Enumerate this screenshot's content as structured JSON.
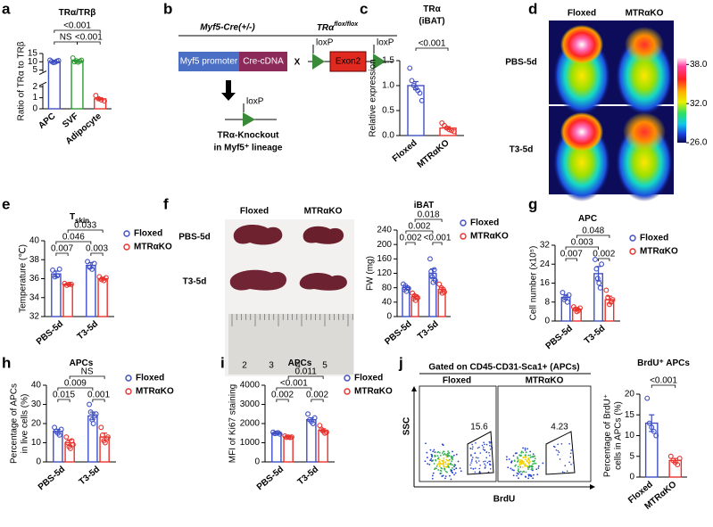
{
  "panel_labels": [
    "a",
    "b",
    "c",
    "d",
    "e",
    "f",
    "g",
    "h",
    "i",
    "j"
  ],
  "chart_data": [
    {
      "type": "bar",
      "title": "TRα/TRβ",
      "y_label": [
        "Ratio of TRα to TRβ"
      ],
      "categories": [
        "APC",
        "SVF",
        "Adipocyte"
      ],
      "values": [
        10,
        10.5,
        0.9
      ],
      "errors": [
        0.3,
        0.4,
        0.1
      ],
      "points": [
        [
          11.0,
          10.2,
          9.6,
          9.8,
          10.4,
          10.7
        ],
        [
          12.3,
          10.0,
          10.6,
          9.8,
          10.4,
          10.9
        ],
        [
          1.2,
          0.9,
          0.8,
          0.7
        ]
      ],
      "colors": [
        "#3f4fc4",
        "#2e9a35",
        "#e8322d"
      ],
      "ylim_lower": [
        0,
        2
      ],
      "ylim_upper": [
        5,
        15
      ],
      "yticks": [
        0,
        1,
        2,
        5,
        10,
        15
      ],
      "comparisons": [
        "<0.001",
        "NS",
        "<0.001"
      ]
    },
    {
      "type": "bar",
      "title": "TRα",
      "subtitle": "(iBAT)",
      "y_label": [
        "Relative expression"
      ],
      "categories": [
        "Floxed",
        "MTRαKO"
      ],
      "values": [
        1.0,
        0.15
      ],
      "errors": [
        0.08,
        0.03
      ],
      "points": [
        [
          1.35,
          1.1,
          1.0,
          0.95,
          0.9,
          0.85,
          0.7
        ],
        [
          0.25,
          0.2,
          0.15,
          0.12,
          0.1,
          0.08
        ]
      ],
      "colors": [
        "#3f4fc4",
        "#e8322d"
      ],
      "ylim": [
        0,
        1.5
      ],
      "yticks": [
        {
          "value": 0,
          "label": "0.0"
        },
        {
          "value": 0.5,
          "label": "0.5"
        },
        {
          "value": 1,
          "label": "1.0"
        },
        {
          "value": 1.5,
          "label": "1.5"
        }
      ],
      "comparisons": [
        "<0.001"
      ]
    },
    {
      "type": "bar",
      "title": "T",
      "title_subscript": "skin",
      "y_label": [
        "Temperature (℃)"
      ],
      "categories": [
        "PBS-5d",
        "T3-5d"
      ],
      "series": [
        {
          "name": "Floxed",
          "color": "#3f4fc4",
          "values": [
            36.5,
            37.4
          ],
          "errors": [
            0.3,
            0.3
          ],
          "points": [
            [
              36.9,
              36.2,
              36.3,
              37.0
            ],
            [
              37.8,
              37.2,
              37.0,
              37.6
            ]
          ]
        },
        {
          "name": "MTRαKO",
          "color": "#e8322d",
          "values": [
            35.4,
            36.0
          ],
          "errors": [
            0.1,
            0.15
          ],
          "points": [
            [
              35.5,
              35.3,
              35.4,
              35.4
            ],
            [
              36.2,
              35.9,
              35.8,
              36.1
            ]
          ]
        }
      ],
      "ylim": [
        32,
        40
      ],
      "yticks": [
        32,
        34,
        36,
        38,
        40
      ],
      "comparisons": [
        "0.033",
        "0.046",
        "0.007",
        "0.003"
      ]
    },
    {
      "type": "bar",
      "title": "iBAT",
      "y_label": [
        "FW (mg)"
      ],
      "categories": [
        "PBS-5d",
        "T3-5d"
      ],
      "series": [
        {
          "name": "Floxed",
          "color": "#3f4fc4",
          "values": [
            80,
            120
          ],
          "errors": [
            5,
            12
          ],
          "points": [
            [
              90,
              75,
              85,
              70,
              80,
              78
            ],
            [
              160,
              125,
              110,
              95,
              130,
              100
            ]
          ]
        },
        {
          "name": "MTRαKO",
          "color": "#e8322d",
          "values": [
            55,
            75
          ],
          "errors": [
            5,
            6
          ],
          "points": [
            [
              65,
              50,
              58,
              45,
              55,
              52
            ],
            [
              90,
              70,
              80,
              65,
              75,
              68
            ]
          ]
        }
      ],
      "ylim": [
        0,
        240
      ],
      "yticks": [
        0,
        40,
        80,
        120,
        160,
        200,
        240
      ],
      "comparisons": [
        "0.018",
        "0.002",
        "0.002",
        "<0.001"
      ]
    },
    {
      "type": "bar",
      "title": "APC",
      "y_label": [
        "Cell number (x10⁵)"
      ],
      "categories": [
        "PBS-5d",
        "T3-5d"
      ],
      "series": [
        {
          "name": "Floxed",
          "color": "#3f4fc4",
          "values": [
            10,
            20
          ],
          "errors": [
            1,
            3
          ],
          "points": [
            [
              12,
              9,
              10,
              8,
              11
            ],
            [
              26,
              22,
              18,
              16,
              14,
              24
            ]
          ]
        },
        {
          "name": "MTRαKO",
          "color": "#e8322d",
          "values": [
            5,
            9
          ],
          "errors": [
            0.7,
            1.5
          ],
          "points": [
            [
              6,
              5,
              4,
              4.5,
              5.5
            ],
            [
              13,
              10,
              7,
              8,
              9
            ]
          ]
        }
      ],
      "ylim": [
        0,
        32
      ],
      "yticks": [
        0,
        8,
        16,
        24,
        32
      ],
      "comparisons": [
        "0.048",
        "0.003",
        "0.007",
        "0.002"
      ]
    },
    {
      "type": "bar",
      "title": "APCs",
      "y_label": [
        "Percentage of APCs",
        "in live cells (%)"
      ],
      "categories": [
        "PBS-5d",
        "T3-5d"
      ],
      "series": [
        {
          "name": "Floxed",
          "color": "#3f4fc4",
          "values": [
            16,
            24
          ],
          "errors": [
            1,
            2
          ],
          "points": [
            [
              18,
              16,
              15,
              14,
              17
            ],
            [
              30,
              26,
              22,
              20,
              24,
              25
            ]
          ]
        },
        {
          "name": "MTRαKO",
          "color": "#e8322d",
          "values": [
            10,
            13
          ],
          "errors": [
            1.5,
            2
          ],
          "points": [
            [
              13,
              10,
              8,
              7,
              11,
              9
            ],
            [
              18,
              14,
              11,
              10,
              12,
              13
            ]
          ]
        }
      ],
      "ylim": [
        0,
        40
      ],
      "yticks": [
        0,
        10,
        20,
        30,
        40
      ],
      "comparisons": [
        "NS",
        "0.009",
        "0.015",
        "0.001"
      ]
    },
    {
      "type": "bar",
      "title": "APCs",
      "y_label": [
        "MFI of Ki67 staining"
      ],
      "categories": [
        "PBS-5d",
        "T3-5d"
      ],
      "series": [
        {
          "name": "Floxed",
          "color": "#3f4fc4",
          "values": [
            1500,
            2200
          ],
          "errors": [
            30,
            100
          ],
          "points": [
            [
              1550,
              1480,
              1500,
              1520,
              1450
            ],
            [
              2500,
              2200,
              2100,
              2000,
              2300
            ]
          ]
        },
        {
          "name": "MTRαKO",
          "color": "#e8322d",
          "values": [
            1300,
            1650
          ],
          "errors": [
            30,
            80
          ],
          "points": [
            [
              1350,
              1280,
              1300,
              1270,
              1300
            ],
            [
              1900,
              1700,
              1600,
              1500,
              1550
            ]
          ]
        }
      ],
      "ylim": [
        0,
        4000
      ],
      "yticks": [
        0,
        1000,
        2000,
        3000,
        4000
      ],
      "comparisons": [
        "0.011",
        "<0.001",
        "0.002",
        "0.002"
      ]
    },
    {
      "type": "bar",
      "title": "BrdU⁺ APCs",
      "y_label": [
        "Percentage of BrdU⁺",
        "cells in APCs (%)"
      ],
      "categories": [
        "Floxed",
        "MTRαKO"
      ],
      "values": [
        13,
        4
      ],
      "errors": [
        2,
        0.5
      ],
      "points": [
        [
          19,
          13,
          12,
          11,
          10
        ],
        [
          5,
          4,
          3.5,
          3,
          4.5
        ]
      ],
      "colors": [
        "#3f4fc4",
        "#e8322d"
      ],
      "ylim": [
        0,
        20
      ],
      "yticks": [
        0,
        5,
        10,
        15,
        20
      ],
      "comparisons": [
        "<0.001"
      ]
    }
  ],
  "schematic": {
    "parent1": "Myf5-Cre(+/-)",
    "parent2": "TRα",
    "parent2_superscript": "flox/flox",
    "promoter": "Myf5 promoter",
    "cdna": "Cre-cDNA",
    "cross": "X",
    "loxp": [
      "loxP",
      "loxP",
      "loxP"
    ],
    "exon": "Exon2",
    "result": [
      "TRα-Knockout",
      "in Myf5⁺ lineage"
    ]
  },
  "thermal": {
    "columns": [
      "Floxed",
      "MTRαKO"
    ],
    "rows": [
      "PBS-5d",
      "T3-5d"
    ],
    "colorbar_lim": [
      26,
      39
    ],
    "colorbar_ticks": [
      {
        "value": 38,
        "label": "38.0"
      },
      {
        "value": 32,
        "label": "32.0"
      },
      {
        "value": 26,
        "label": "26.0"
      }
    ]
  },
  "photo": {
    "columns": [
      "Floxed",
      "MTRαKO"
    ],
    "rows": [
      "PBS-5d",
      "T3-5d"
    ],
    "ruler": [
      "2",
      "3",
      "4",
      "5"
    ]
  },
  "flow": {
    "gate": "Gated on CD45-CD31-Sca1+ (APCs)",
    "columns": [
      "Floxed",
      "MTRαKO"
    ],
    "gate_percent": [
      15.6,
      4.23
    ],
    "y_label": "SSC",
    "x_label": "BrdU"
  }
}
